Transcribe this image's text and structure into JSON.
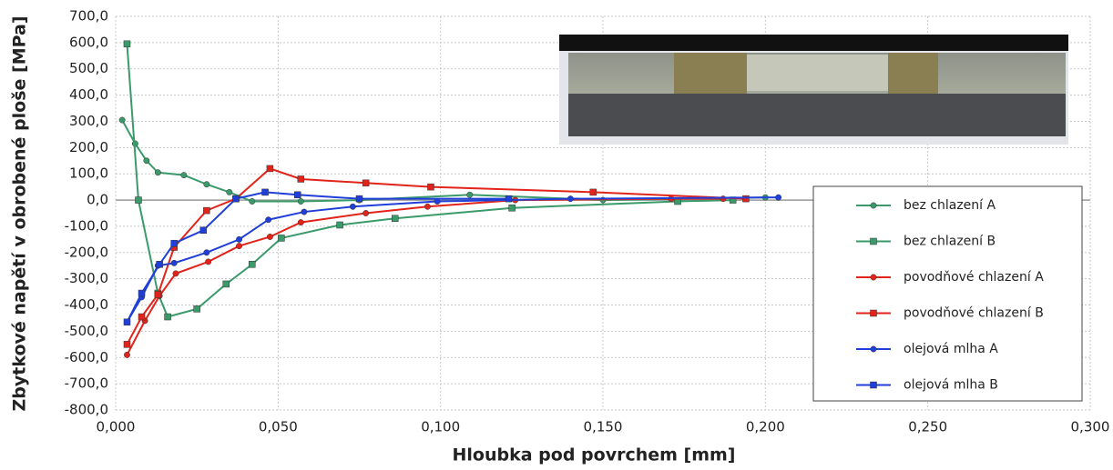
{
  "chart_data": {
    "type": "line",
    "x_label": "Hloubka pod povrchem [mm]",
    "y_label": "Zbytkové napětí v obrobené ploše [MPa]",
    "xlim": [
      0,
      0.3
    ],
    "xticks": [
      {
        "value": 0,
        "label": "0,000"
      },
      {
        "value": 0.05,
        "label": "0,050"
      },
      {
        "value": 0.1,
        "label": "0,100"
      },
      {
        "value": 0.15,
        "label": "0,150"
      },
      {
        "value": 0.2,
        "label": "0,200"
      },
      {
        "value": 0.25,
        "label": "0,250"
      },
      {
        "value": 0.3,
        "label": "0,300"
      }
    ],
    "ylim": [
      -800,
      700
    ],
    "yticks": [
      {
        "value": -800,
        "label": "-800,0"
      },
      {
        "value": -700,
        "label": "-700,0"
      },
      {
        "value": -600,
        "label": "-600,0"
      },
      {
        "value": -500,
        "label": "-500,0"
      },
      {
        "value": -400,
        "label": "-400,0"
      },
      {
        "value": -300,
        "label": "-300,0"
      },
      {
        "value": -200,
        "label": "-200,0"
      },
      {
        "value": -100,
        "label": "-100,0"
      },
      {
        "value": 0,
        "label": "0,0"
      },
      {
        "value": 100,
        "label": "100,0"
      },
      {
        "value": 200,
        "label": "200,0"
      },
      {
        "value": 300,
        "label": "300,0"
      },
      {
        "value": 400,
        "label": "400,0"
      },
      {
        "value": 500,
        "label": "500,0"
      },
      {
        "value": 600,
        "label": "600,0"
      },
      {
        "value": 700,
        "label": "700,0"
      }
    ],
    "grid": true,
    "legend": "right",
    "series": [
      {
        "name": "bez chlazení  A",
        "color": "#3a9a6a",
        "marker": "circle",
        "x": [
          0.002,
          0.006,
          0.0095,
          0.013,
          0.021,
          0.028,
          0.035,
          0.042,
          0.057,
          0.075,
          0.109,
          0.15,
          0.2
        ],
        "values": [
          305,
          215,
          150,
          105,
          95,
          60,
          30,
          -5,
          -5,
          0,
          20,
          0,
          10
        ]
      },
      {
        "name": "bez chlazení B",
        "color": "#3a9a6a",
        "marker": "square",
        "x": [
          0.0035,
          0.007,
          0.013,
          0.016,
          0.025,
          0.034,
          0.042,
          0.051,
          0.069,
          0.086,
          0.122,
          0.173,
          0.19
        ],
        "values": [
          595,
          0,
          -355,
          -445,
          -415,
          -320,
          -245,
          -145,
          -95,
          -70,
          -30,
          -5,
          0
        ]
      },
      {
        "name": "povodňové chlazení A",
        "color": "#e2231a",
        "marker": "circle",
        "x": [
          0.0035,
          0.009,
          0.0135,
          0.0185,
          0.0285,
          0.038,
          0.0475,
          0.057,
          0.077,
          0.096,
          0.123,
          0.171,
          0.187
        ],
        "values": [
          -590,
          -460,
          -365,
          -280,
          -235,
          -175,
          -140,
          -85,
          -50,
          -25,
          0,
          5,
          5
        ]
      },
      {
        "name": "povodňové chlazení B",
        "color": "#e2231a",
        "marker": "square",
        "x": [
          0.0035,
          0.008,
          0.013,
          0.018,
          0.028,
          0.037,
          0.0475,
          0.057,
          0.077,
          0.097,
          0.147,
          0.194
        ],
        "values": [
          -550,
          -445,
          -360,
          -180,
          -40,
          5,
          120,
          80,
          65,
          50,
          30,
          5
        ]
      },
      {
        "name": "olejová mlha A",
        "color": "#1f3fd8",
        "marker": "circle",
        "x": [
          0.0035,
          0.008,
          0.013,
          0.018,
          0.028,
          0.038,
          0.047,
          0.058,
          0.073,
          0.099,
          0.14,
          0.204
        ],
        "values": [
          -465,
          -370,
          -250,
          -240,
          -200,
          -150,
          -75,
          -45,
          -25,
          -5,
          5,
          10
        ]
      },
      {
        "name": "olejová mlha B",
        "color": "#1f3fd8",
        "marker": "square",
        "x": [
          0.0035,
          0.008,
          0.0135,
          0.018,
          0.027,
          0.037,
          0.046,
          0.056,
          0.075,
          0.121
        ],
        "values": [
          -465,
          -355,
          -245,
          -165,
          -115,
          5,
          30,
          20,
          5,
          5
        ]
      }
    ]
  }
}
